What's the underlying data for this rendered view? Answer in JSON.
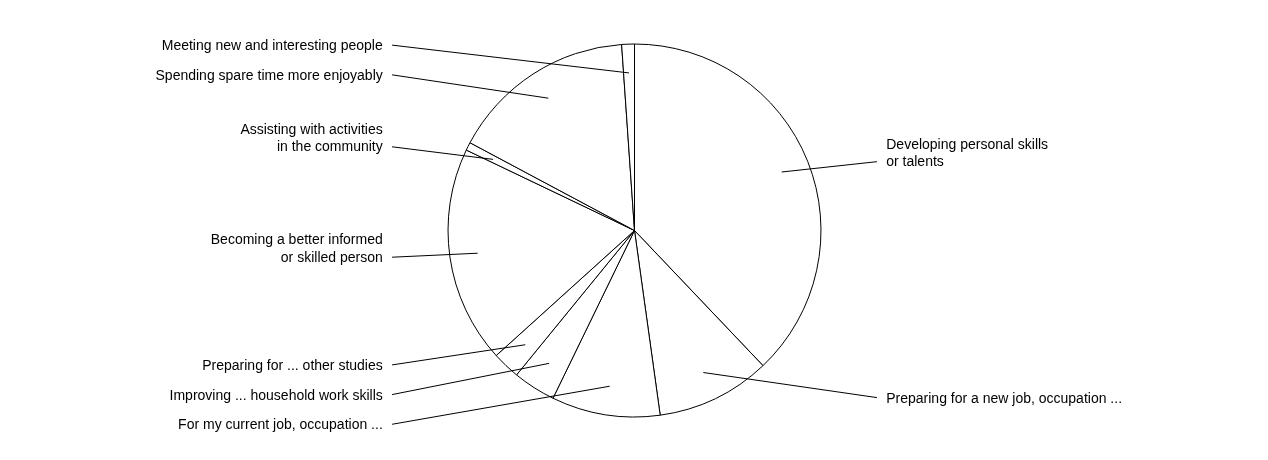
{
  "chart_data": {
    "type": "pie",
    "categories": [
      "Developing personal skills\nor talents",
      "Preparing for a new job, occupation ...",
      "For my current job, occupation ...",
      "Improving ... household work skills",
      "Preparing for ... other studies",
      "Becoming a better informed\nor skilled person",
      "Assisting with activities\nin the community",
      "Spending spare time more enjoyably",
      "Meeting new and interesting people"
    ],
    "values": [
      37.9,
      9.9,
      9.4,
      3.7,
      2.4,
      18.8,
      0.7,
      16.1,
      1.1
    ],
    "colors": [
      "#ffffff",
      "#ffffff",
      "#ffffff",
      "#ffffff",
      "#ffffff",
      "#ffffff",
      "#ffffff",
      "#ffffff",
      "#ffffff"
    ]
  }
}
